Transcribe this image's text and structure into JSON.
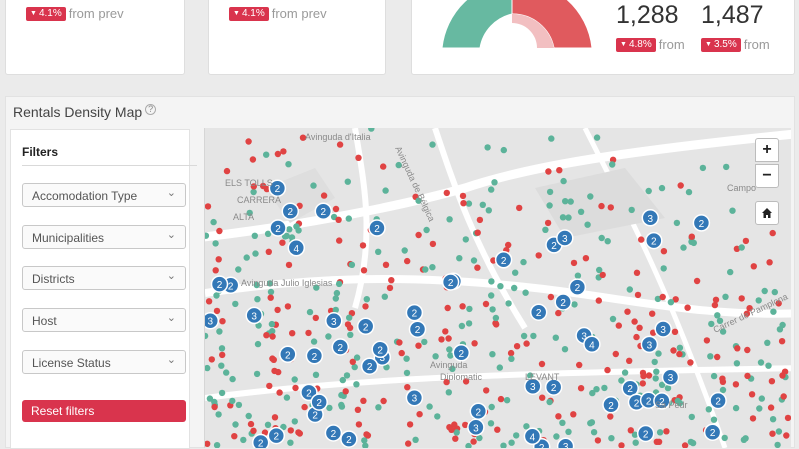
{
  "top_cards": [
    {
      "badge": "4.1%",
      "from": "from prev"
    },
    {
      "badge": "4.1%",
      "from": "from prev"
    }
  ],
  "stats": [
    {
      "value": "1,288",
      "badge": "4.8%",
      "from": "from"
    },
    {
      "value": "1,487",
      "badge": "3.5%",
      "from": "from"
    }
  ],
  "colors": {
    "accent": "#d9344d",
    "green": "#5cb39a",
    "red": "#e04343",
    "cluster": "#3378b7"
  },
  "section": {
    "title": "Rentals Density Map",
    "help_icon": "question-circle-icon"
  },
  "filters": {
    "title": "Filters",
    "selects": [
      "Accomodation Type",
      "Municipalities",
      "Districts",
      "Host",
      "License Status"
    ],
    "reset_label": "Reset filters"
  },
  "map": {
    "labels": [
      "Avinguda d'Italia",
      "Avinguda de Bélgica",
      "ELS TOLLS",
      "CARRERA",
      "ALTA",
      "Avinguda Julio Iglesias",
      "Campo",
      "Carrer de Pamplona",
      "Avinguda",
      "Diplomatic",
      "LEVANT",
      "Sa Pedr"
    ],
    "zoom_in": "+",
    "zoom_out": "−",
    "cluster_numbers": [
      "2",
      "2",
      "2",
      "2",
      "2",
      "2",
      "3",
      "2",
      "2",
      "3",
      "3",
      "2",
      "4",
      "2",
      "2",
      "2",
      "3",
      "3"
    ]
  }
}
